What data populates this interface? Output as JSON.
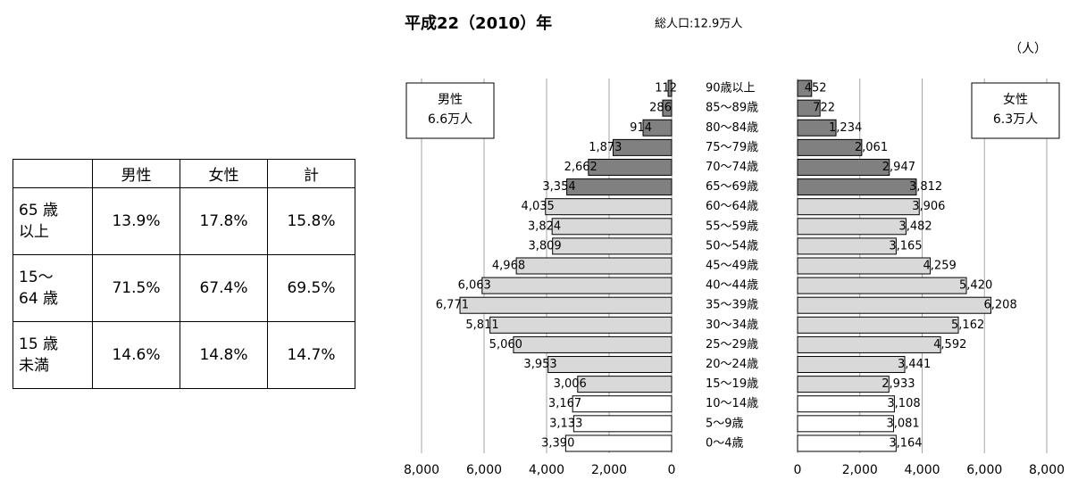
{
  "table": {
    "columns": [
      "男性",
      "女性",
      "計"
    ],
    "rows": [
      {
        "label": [
          "65 歳",
          "以上"
        ],
        "cells": [
          "13.9%",
          "17.8%",
          "15.8%"
        ]
      },
      {
        "label": [
          "15～",
          "64 歳"
        ],
        "cells": [
          "71.5%",
          "67.4%",
          "69.5%"
        ]
      },
      {
        "label": [
          "15 歳",
          "未満"
        ],
        "cells": [
          "14.6%",
          "14.8%",
          "14.7%"
        ]
      }
    ]
  },
  "chart_data": {
    "type": "pyramid",
    "title": "平成22（2010）年",
    "subtitle": "総人口:12.9万人",
    "unit": "（人）",
    "categories": [
      "90歳以上",
      "85～89歳",
      "80～84歳",
      "75～79歳",
      "70～74歳",
      "65～69歳",
      "60～64歳",
      "55～59歳",
      "50～54歳",
      "45～49歳",
      "40～44歳",
      "35～39歳",
      "30～34歳",
      "25～29歳",
      "20～24歳",
      "15～19歳",
      "10～14歳",
      "5～9歳",
      "0～4歳"
    ],
    "colors": [
      "#808080",
      "#808080",
      "#808080",
      "#808080",
      "#808080",
      "#808080",
      "#d9d9d9",
      "#d9d9d9",
      "#d9d9d9",
      "#d9d9d9",
      "#d9d9d9",
      "#d9d9d9",
      "#d9d9d9",
      "#d9d9d9",
      "#d9d9d9",
      "#d9d9d9",
      "#ffffff",
      "#ffffff",
      "#ffffff"
    ],
    "series": [
      {
        "name": "男性",
        "total": "6.6万人",
        "values": [
          112,
          286,
          914,
          1873,
          2662,
          3354,
          4035,
          3824,
          3809,
          4968,
          6063,
          6771,
          5811,
          5060,
          3953,
          3006,
          3167,
          3133,
          3390
        ],
        "value_labels": [
          "112",
          "286",
          "914",
          "1,873",
          "2,662",
          "3,354",
          "4,035",
          "3,824",
          "3,809",
          "4,968",
          "6,063",
          "6,771",
          "5,811",
          "5,060",
          "3,953",
          "3,006",
          "3,167",
          "3,133",
          "3,390"
        ]
      },
      {
        "name": "女性",
        "total": "6.3万人",
        "values": [
          452,
          722,
          1234,
          2061,
          2947,
          3812,
          3906,
          3482,
          3165,
          4259,
          5420,
          6208,
          5162,
          4592,
          3441,
          2933,
          3108,
          3081,
          3164
        ],
        "value_labels": [
          "452",
          "722",
          "1,234",
          "2,061",
          "2,947",
          "3,812",
          "3,906",
          "3,482",
          "3,165",
          "4,259",
          "5,420",
          "6,208",
          "5,162",
          "4,592",
          "3,441",
          "2,933",
          "3,108",
          "3,081",
          "3,164"
        ]
      }
    ],
    "xlim": [
      0,
      8000
    ],
    "xticks": [
      0,
      {
        "value": 2000,
        "label": "2,000"
      },
      {
        "value": 4000,
        "label": "4,000"
      },
      {
        "value": 6000,
        "label": "6,000"
      },
      {
        "value": 8000,
        "label": "8,000"
      }
    ],
    "grid": true
  }
}
